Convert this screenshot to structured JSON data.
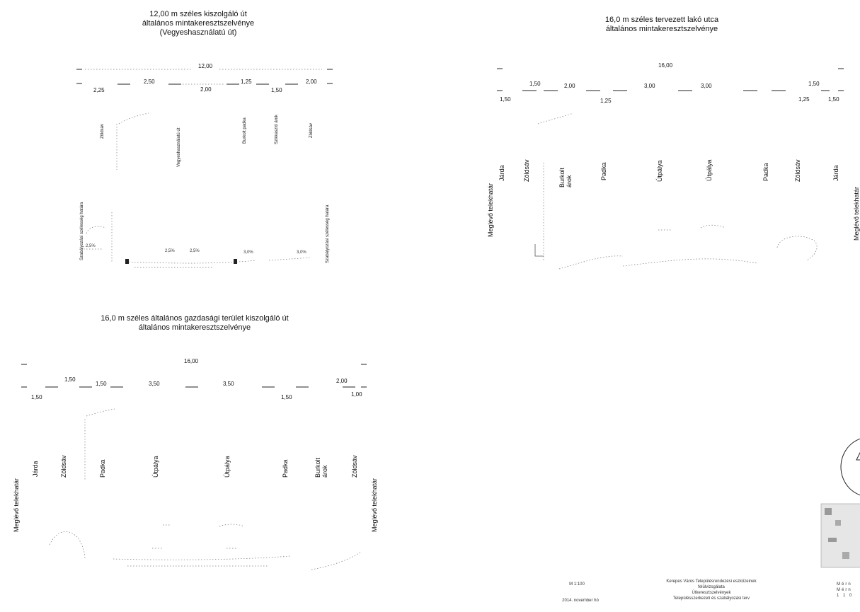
{
  "section1": {
    "title_lines": [
      "12,00 m széles kiszolgáló út",
      "általános mintakeresztszelvénye",
      "(Vegyeshasználatú út)"
    ],
    "total": "12,00",
    "dims_top": [
      "2,25",
      "2,50",
      "2,00",
      "1,25",
      "1,50",
      "2,00"
    ],
    "strips": [
      "Zöldsáv",
      "Vegyeshasználatú út",
      "Burkolt padka",
      "Szikkasztó árok",
      "Zöldsáv"
    ],
    "side_left": "Szabályozási szélesség határa",
    "side_right": "Szabályozási szélesség határa",
    "slopes": [
      "2,5%",
      "2,5%",
      "2,5%",
      "3,0%",
      "3,0%"
    ]
  },
  "section2": {
    "title_lines": [
      "16,0 m széles tervezett lakó utca",
      "általános mintakeresztszelvénye"
    ],
    "total": "16,00",
    "dims_row1": [
      "1,50",
      "2,00",
      "3,00",
      "3,00",
      "1,50"
    ],
    "dims_row2": [
      "1,50",
      "1,25",
      "1,25",
      "1,50"
    ],
    "side_left": "Meglévő telekhatár",
    "side_right": "Meglévő telekhatár",
    "strips": [
      "Járda",
      "Zöldsáv",
      "Burkolt árok",
      "Padka",
      "Útpálya",
      "Útpálya",
      "Padka",
      "Zöldsáv",
      "Járda"
    ]
  },
  "section3": {
    "title_lines": [
      "16,0 m széles általános gazdasági terület kiszolgáló út",
      "általános mintakeresztszelvénye"
    ],
    "total": "16,00",
    "dims_row1": [
      "1,50",
      "1,50",
      "3,50",
      "3,50",
      "2,00"
    ],
    "dims_row2": [
      "1,50",
      "1,50",
      "1,00"
    ],
    "side_left": "Meglévő telekhatár",
    "side_right": "Meglévő telekhatár",
    "strips": [
      "Járda",
      "Zöldsáv",
      "Padka",
      "Útpálya",
      "Útpálya",
      "Padka",
      "Burkolt árok",
      "Zöldsáv"
    ]
  },
  "footer": {
    "scale": "M 1:100",
    "date": "2014. november hó",
    "project_lines": [
      "Kerepes Város Településrendezési eszközeinek",
      "felülvizsgálata",
      "Útkeresztszelvények",
      "Településszerkezeti és szabályozási terv"
    ],
    "stamp_lines": [
      "Mérn",
      "Mérn",
      "1 1 0"
    ]
  }
}
